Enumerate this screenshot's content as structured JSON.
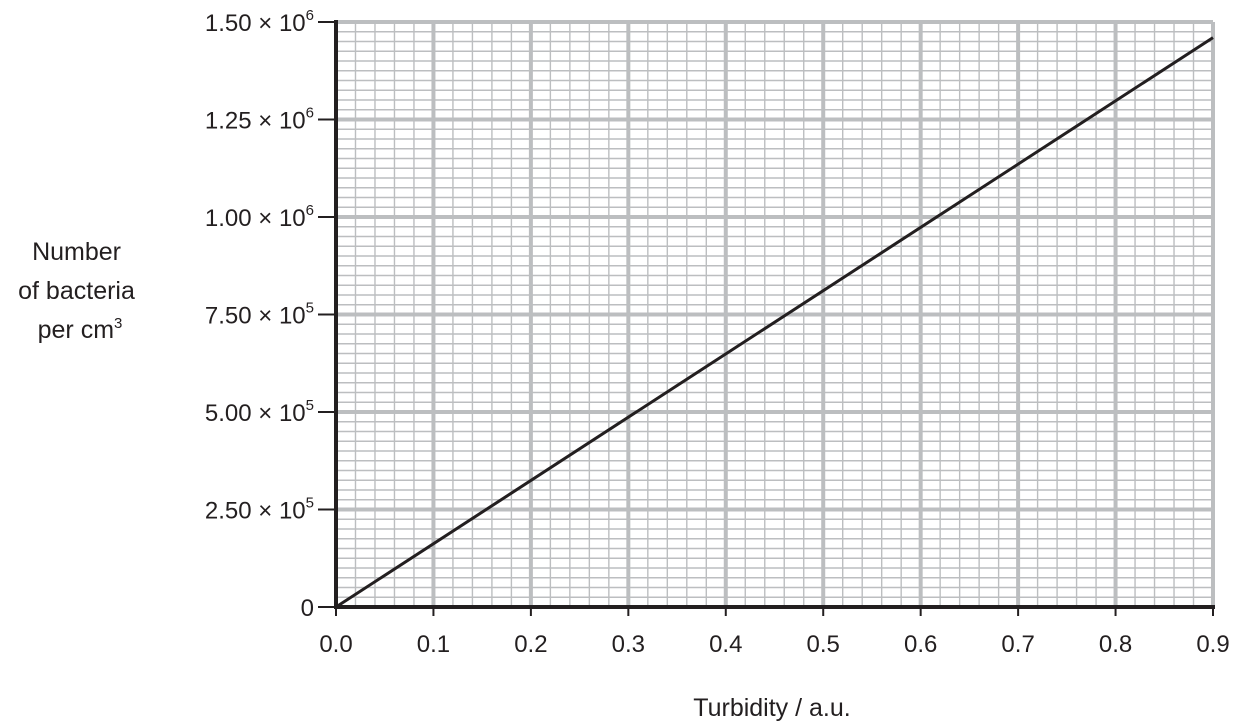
{
  "chart_data": {
    "type": "line",
    "xlabel": "Turbidity / a.u.",
    "ylabel_lines": [
      "Number",
      "of bacteria",
      "per cm"
    ],
    "ylabel_sup": "3",
    "xlim": [
      0,
      0.9
    ],
    "ylim": [
      0,
      1500000
    ],
    "grid": true,
    "x_ticks": [
      {
        "value": 0.0,
        "label": "0.0"
      },
      {
        "value": 0.1,
        "label": "0.1"
      },
      {
        "value": 0.2,
        "label": "0.2"
      },
      {
        "value": 0.3,
        "label": "0.3"
      },
      {
        "value": 0.4,
        "label": "0.4"
      },
      {
        "value": 0.5,
        "label": "0.5"
      },
      {
        "value": 0.6,
        "label": "0.6"
      },
      {
        "value": 0.7,
        "label": "0.7"
      },
      {
        "value": 0.8,
        "label": "0.8"
      },
      {
        "value": 0.9,
        "label": "0.9"
      }
    ],
    "y_ticks": [
      {
        "value": 0,
        "label": "0",
        "exp": ""
      },
      {
        "value": 250000,
        "label": "2.50 × 10",
        "exp": "5"
      },
      {
        "value": 500000,
        "label": "5.00 × 10",
        "exp": "5"
      },
      {
        "value": 750000,
        "label": "7.50 × 10",
        "exp": "5"
      },
      {
        "value": 1000000,
        "label": "1.00 × 10",
        "exp": "6"
      },
      {
        "value": 1250000,
        "label": "1.25 × 10",
        "exp": "6"
      },
      {
        "value": 1500000,
        "label": "1.50 × 10",
        "exp": "6"
      }
    ],
    "series": [
      {
        "x": [
          0.0,
          0.9
        ],
        "y": [
          0,
          1460000
        ]
      }
    ],
    "colors": {
      "grid_minor": "#bcbec0",
      "grid_major": "#bcbec0",
      "axis": "#231f20",
      "line": "#231f20",
      "text": "#231f20"
    }
  }
}
